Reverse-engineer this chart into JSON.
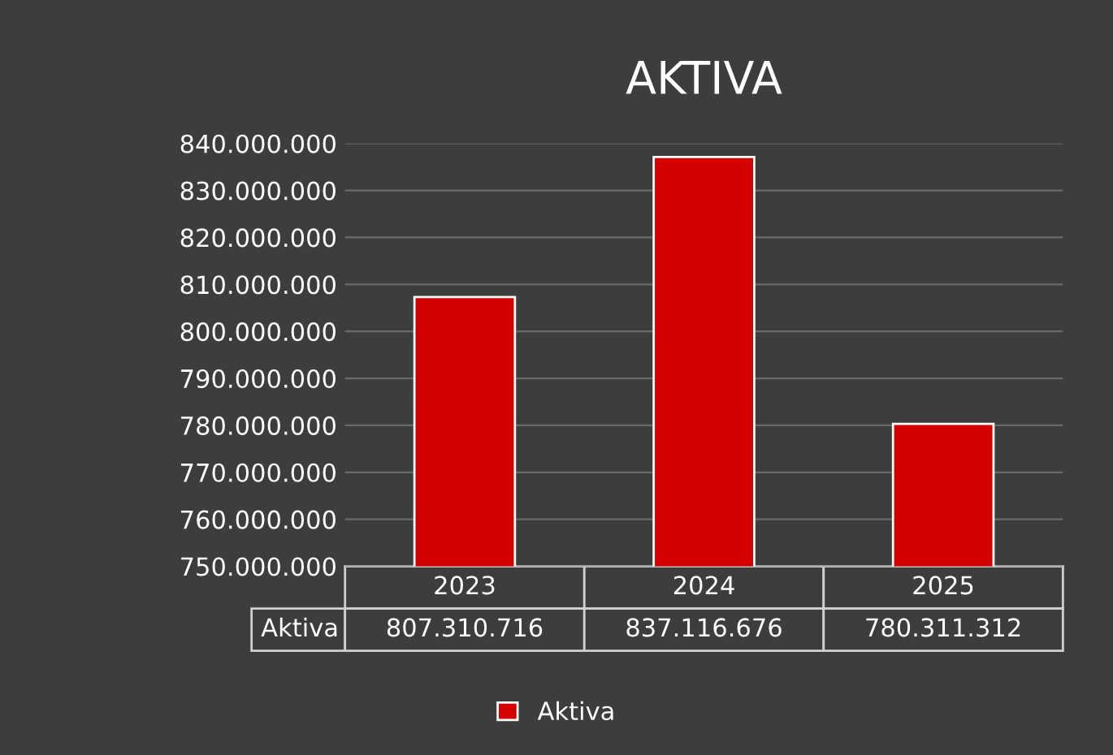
{
  "chart_data": {
    "type": "bar",
    "title": "AKTIVA",
    "categories": [
      "2023",
      "2024",
      "2025"
    ],
    "series": [
      {
        "name": "Aktiva",
        "color": "#d40000",
        "values": [
          807310716,
          837116676,
          780311312
        ],
        "value_labels": [
          "807.310.716",
          "837.116.676",
          "780.311.312"
        ]
      }
    ],
    "ylim": [
      750000000,
      840000000
    ],
    "yticks": [
      {
        "value": 750000000,
        "label": "750.000.000"
      },
      {
        "value": 760000000,
        "label": "760.000.000"
      },
      {
        "value": 770000000,
        "label": "770.000.000"
      },
      {
        "value": 780000000,
        "label": "780.000.000"
      },
      {
        "value": 790000000,
        "label": "790.000.000"
      },
      {
        "value": 800000000,
        "label": "800.000.000"
      },
      {
        "value": 810000000,
        "label": "810.000.000"
      },
      {
        "value": 820000000,
        "label": "820.000.000"
      },
      {
        "value": 830000000,
        "label": "830.000.000"
      },
      {
        "value": 840000000,
        "label": "840.000.000"
      }
    ],
    "grid": "y",
    "legend": "bottom"
  }
}
